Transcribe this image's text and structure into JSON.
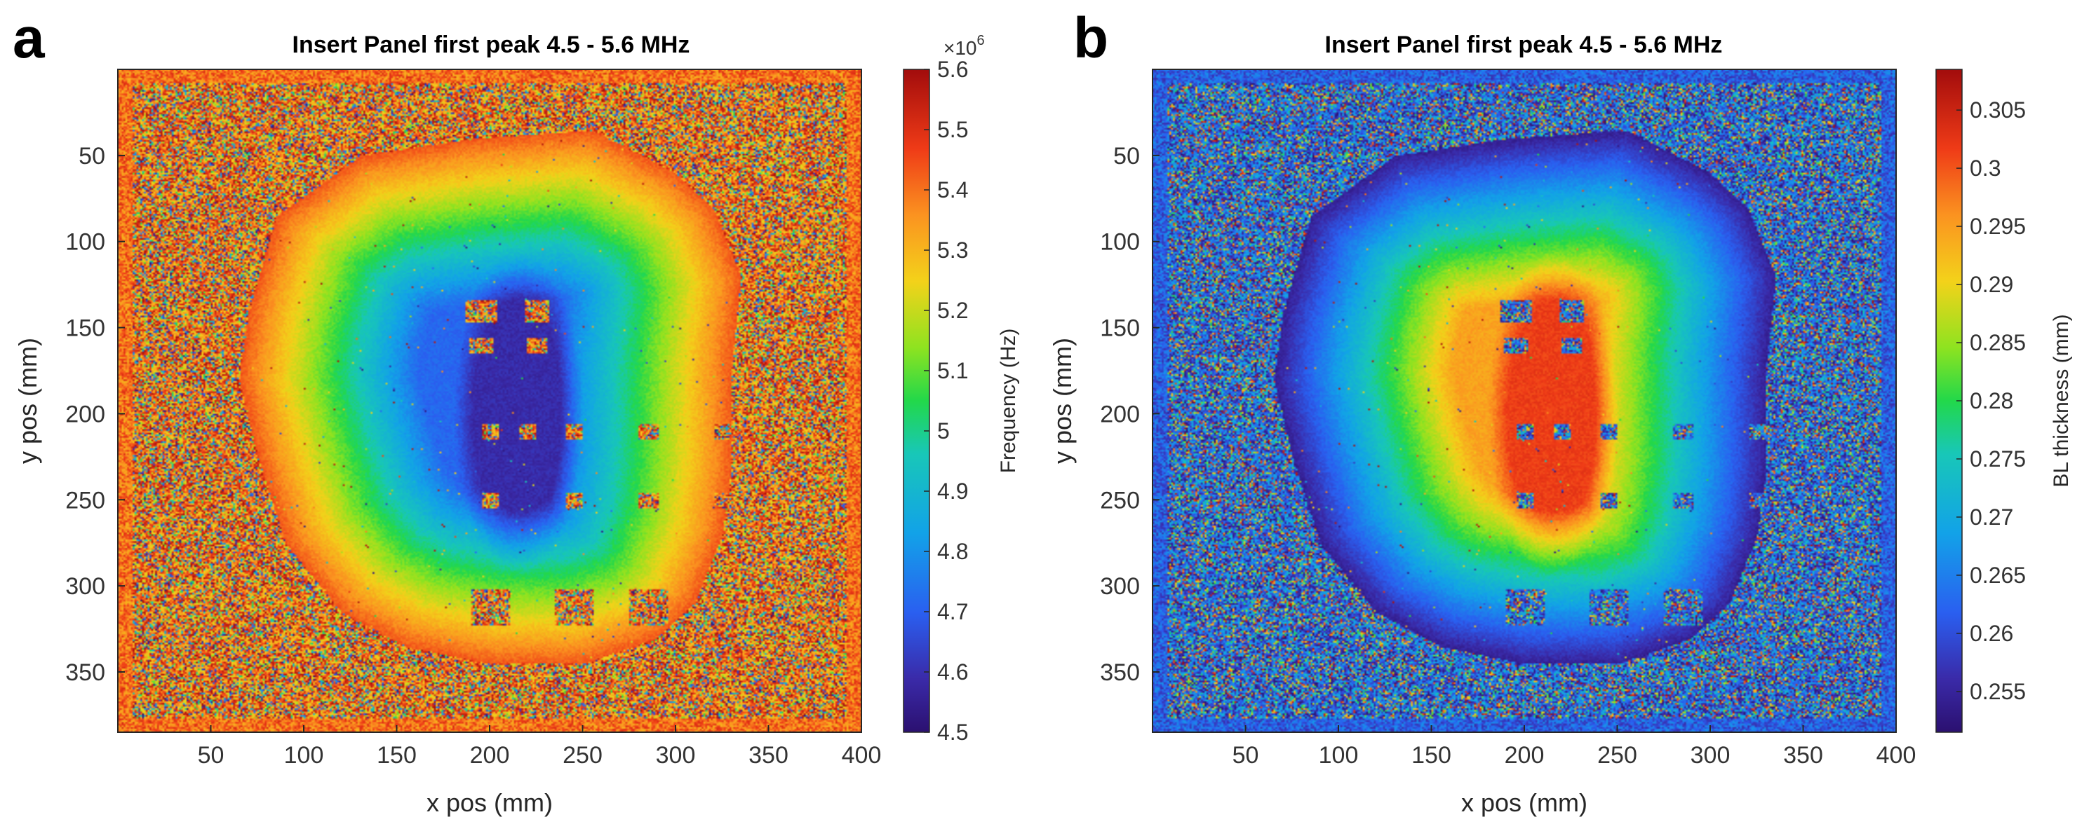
{
  "chart_data": [
    {
      "panel_label": "a",
      "type": "heatmap",
      "title": "Insert Panel first peak 4.5 - 5.6 MHz",
      "xlabel": "x pos (mm)",
      "ylabel": "y pos (mm)",
      "xlim": [
        0,
        400
      ],
      "ylim": [
        0,
        385
      ],
      "xticks": [
        50,
        100,
        150,
        200,
        250,
        300,
        350,
        400
      ],
      "yticks": [
        50,
        100,
        150,
        200,
        250,
        300,
        350
      ],
      "colorbar": {
        "label": "Frequency (Hz)",
        "multiplier": "×10",
        "multiplier_exp": "6",
        "range": [
          4.5,
          5.6
        ],
        "ticks": [
          "4.5",
          "4.6",
          "4.7",
          "4.8",
          "4.9",
          "5",
          "5.1",
          "5.2",
          "5.3",
          "5.4",
          "5.5",
          "5.6"
        ],
        "scale": "jet"
      },
      "field": {
        "background": 0.82,
        "region_edge": 0.85,
        "region_center": 0.08,
        "region_outline_mm": [
          [
            70,
            140
          ],
          [
            85,
            85
          ],
          [
            130,
            50
          ],
          [
            190,
            40
          ],
          [
            255,
            35
          ],
          [
            300,
            60
          ],
          [
            320,
            80
          ],
          [
            335,
            120
          ],
          [
            330,
            170
          ],
          [
            330,
            230
          ],
          [
            325,
            270
          ],
          [
            310,
            310
          ],
          [
            290,
            330
          ],
          [
            250,
            345
          ],
          [
            200,
            345
          ],
          [
            155,
            335
          ],
          [
            120,
            315
          ],
          [
            90,
            275
          ],
          [
            75,
            225
          ],
          [
            65,
            180
          ]
        ],
        "core_center_mm": [
          215,
          200
        ],
        "core_radius_mm": [
          35,
          95
        ],
        "defects_mm": [
          [
            195,
            140,
            18,
            14
          ],
          [
            225,
            140,
            14,
            14
          ],
          [
            195,
            160,
            14,
            10
          ],
          [
            225,
            160,
            12,
            10
          ],
          [
            200,
            210,
            10,
            10
          ],
          [
            220,
            210,
            10,
            10
          ],
          [
            245,
            210,
            10,
            10
          ],
          [
            285,
            210,
            12,
            10
          ],
          [
            325,
            210,
            10,
            10
          ],
          [
            200,
            250,
            10,
            10
          ],
          [
            245,
            250,
            10,
            10
          ],
          [
            285,
            250,
            12,
            10
          ],
          [
            325,
            250,
            10,
            10
          ],
          [
            200,
            312,
            22,
            22
          ],
          [
            245,
            312,
            22,
            22
          ],
          [
            285,
            312,
            22,
            22
          ],
          [
            325,
            312,
            22,
            22
          ],
          [
            365,
            312,
            22,
            22
          ]
        ]
      }
    },
    {
      "panel_label": "b",
      "type": "heatmap",
      "title": "Insert Panel first peak 4.5 - 5.6 MHz",
      "xlabel": "x pos (mm)",
      "ylabel": "y pos (mm)",
      "xlim": [
        0,
        400
      ],
      "ylim": [
        0,
        385
      ],
      "xticks": [
        50,
        100,
        150,
        200,
        250,
        300,
        350,
        400
      ],
      "yticks": [
        50,
        100,
        150,
        200,
        250,
        300,
        350
      ],
      "colorbar": {
        "label": "BL thickness (mm)",
        "range": [
          0.2515,
          0.3085
        ],
        "ticks": [
          "0.255",
          "0.26",
          "0.265",
          "0.27",
          "0.275",
          "0.28",
          "0.285",
          "0.29",
          "0.295",
          "0.3",
          "0.305"
        ],
        "tick_values": [
          0.255,
          0.26,
          0.265,
          0.27,
          0.275,
          0.28,
          0.285,
          0.29,
          0.295,
          0.3,
          0.305
        ],
        "scale": "jet"
      },
      "field": {
        "background": 0.18,
        "region_edge": 0.05,
        "region_center": 0.88,
        "region_outline_mm": [
          [
            70,
            140
          ],
          [
            85,
            85
          ],
          [
            130,
            50
          ],
          [
            190,
            40
          ],
          [
            255,
            35
          ],
          [
            300,
            60
          ],
          [
            320,
            80
          ],
          [
            335,
            120
          ],
          [
            330,
            170
          ],
          [
            330,
            230
          ],
          [
            325,
            270
          ],
          [
            310,
            310
          ],
          [
            290,
            330
          ],
          [
            250,
            345
          ],
          [
            200,
            345
          ],
          [
            155,
            335
          ],
          [
            120,
            315
          ],
          [
            90,
            275
          ],
          [
            75,
            225
          ],
          [
            65,
            180
          ]
        ],
        "core_center_mm": [
          215,
          200
        ],
        "core_radius_mm": [
          35,
          95
        ],
        "defects_mm": [
          [
            195,
            140,
            18,
            14
          ],
          [
            225,
            140,
            14,
            14
          ],
          [
            195,
            160,
            14,
            10
          ],
          [
            225,
            160,
            12,
            10
          ],
          [
            200,
            210,
            10,
            10
          ],
          [
            220,
            210,
            10,
            10
          ],
          [
            245,
            210,
            10,
            10
          ],
          [
            285,
            210,
            12,
            10
          ],
          [
            325,
            210,
            10,
            10
          ],
          [
            200,
            250,
            10,
            10
          ],
          [
            245,
            250,
            10,
            10
          ],
          [
            285,
            250,
            12,
            10
          ],
          [
            325,
            250,
            10,
            10
          ],
          [
            200,
            312,
            22,
            22
          ],
          [
            245,
            312,
            22,
            22
          ],
          [
            285,
            312,
            22,
            22
          ],
          [
            325,
            312,
            22,
            22
          ],
          [
            365,
            312,
            22,
            22
          ]
        ]
      }
    }
  ]
}
